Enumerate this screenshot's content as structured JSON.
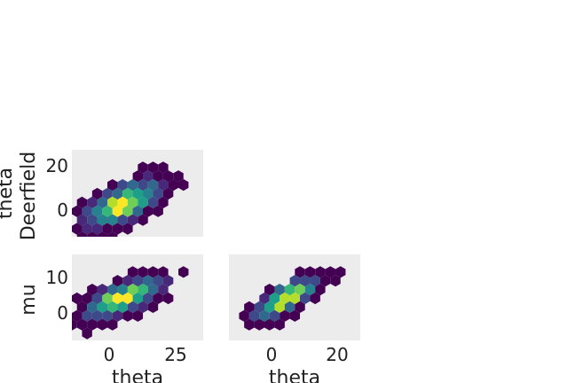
{
  "chart_data": [
    {
      "type": "heatmap",
      "subtype": "hexbin",
      "position": "top-left",
      "xlabel": "",
      "ylabel": [
        "theta",
        "Deerfield"
      ],
      "xlim": [
        -14,
        33
      ],
      "ylim": [
        -10,
        27
      ],
      "xticks": [],
      "yticks": [
        0,
        20
      ],
      "yticklabels": [
        "0",
        "20"
      ],
      "background": "#ececec",
      "colormap": [
        "#440154",
        "#482878",
        "#3e4989",
        "#31688e",
        "#26828e",
        "#1f9e89",
        "#35b779",
        "#6ece58",
        "#b5de2b",
        "#fde725"
      ],
      "density": {
        "center": [
          4.3,
          4.3
        ],
        "sx": 7.5,
        "sy": 5.6,
        "rho": 0.62
      },
      "grid": false
    },
    {
      "type": "heatmap",
      "subtype": "hexbin",
      "position": "bottom-left",
      "xlabel": "theta",
      "ylabel": [
        "mu"
      ],
      "xlim": [
        -14,
        33
      ],
      "ylim": [
        -8,
        17
      ],
      "xticks": [
        0,
        25
      ],
      "xticklabels": [
        "0",
        "25"
      ],
      "yticks": [
        0,
        10
      ],
      "yticklabels": [
        "0",
        "10"
      ],
      "background": "#ececec",
      "colormap": [
        "#440154",
        "#482878",
        "#3e4989",
        "#31688e",
        "#26828e",
        "#1f9e89",
        "#35b779",
        "#6ece58",
        "#b5de2b",
        "#fde725"
      ],
      "density": {
        "center": [
          4.3,
          4.3
        ],
        "sx": 7.5,
        "sy": 3.4,
        "rho": 0.65
      },
      "grid": false
    },
    {
      "type": "heatmap",
      "subtype": "hexbin",
      "position": "bottom-right",
      "xlabel": "theta",
      "ylabel": [],
      "xlim": [
        -13,
        27
      ],
      "ylim": [
        -8,
        17
      ],
      "xticks": [
        0,
        20
      ],
      "xticklabels": [
        "0",
        "20"
      ],
      "yticks": [],
      "background": "#ececec",
      "colormap": [
        "#440154",
        "#482878",
        "#3e4989",
        "#31688e",
        "#26828e",
        "#1f9e89",
        "#35b779",
        "#6ece58",
        "#b5de2b",
        "#fde725"
      ],
      "density": {
        "center": [
          4.3,
          4.3
        ],
        "sx": 5.6,
        "sy": 3.4,
        "rho": 0.75
      },
      "grid": false
    }
  ]
}
